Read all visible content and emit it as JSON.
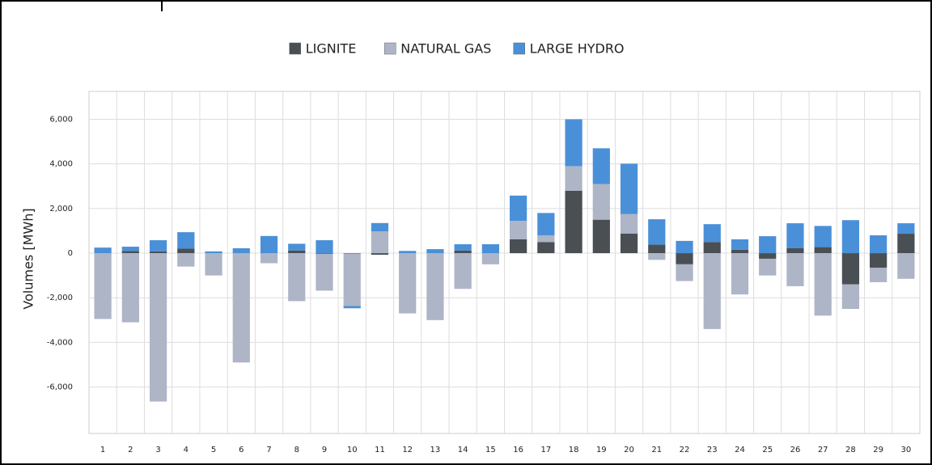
{
  "chart_data": {
    "type": "stacked-bar",
    "ylabel": "Volumes [MWh]",
    "categories": [
      "1",
      "2",
      "3",
      "4",
      "5",
      "6",
      "7",
      "8",
      "9",
      "10",
      "11",
      "12",
      "13",
      "14",
      "15",
      "16",
      "17",
      "18",
      "19",
      "20",
      "21",
      "22",
      "23",
      "24",
      "25",
      "26",
      "27",
      "28",
      "29",
      "30"
    ],
    "series": [
      {
        "name": "LIGNITE",
        "color": "#4a4f54",
        "values": [
          0,
          100,
          80,
          200,
          0,
          0,
          0,
          120,
          -30,
          -20,
          -70,
          0,
          0,
          120,
          0,
          620,
          500,
          2800,
          1500,
          880,
          380,
          -500,
          500,
          150,
          -250,
          220,
          270,
          -1400,
          -650,
          870
        ]
      },
      {
        "name": "NATURAL GAS",
        "color": "#adb5c7",
        "values": [
          -2950,
          -3100,
          -6650,
          -600,
          -1000,
          -4900,
          -450,
          -2150,
          -1650,
          -2350,
          980,
          -2700,
          -3000,
          -1600,
          -500,
          830,
          300,
          1100,
          1600,
          870,
          -300,
          -750,
          -3400,
          -1850,
          -750,
          -1480,
          -2800,
          -1100,
          -650,
          -1150
        ]
      },
      {
        "name": "LARGE HYDRO",
        "color": "#4a90d9",
        "values": [
          250,
          190,
          500,
          740,
          80,
          220,
          770,
          300,
          580,
          -100,
          370,
          100,
          180,
          280,
          400,
          1130,
          1000,
          2100,
          1600,
          2260,
          1140,
          550,
          800,
          470,
          760,
          1120,
          950,
          1480,
          800,
          470
        ]
      }
    ],
    "ylim": [
      -8080,
      7250
    ],
    "yticks": [
      {
        "value": -6000,
        "label": "-6,000"
      },
      {
        "value": -4000,
        "label": "-4,000"
      },
      {
        "value": -2000,
        "label": "-2,000"
      },
      0,
      {
        "value": 2000,
        "label": "2,000"
      },
      {
        "value": 4000,
        "label": "4,000"
      },
      {
        "value": 6000,
        "label": "6,000"
      }
    ],
    "grid": true,
    "legend": "top"
  }
}
